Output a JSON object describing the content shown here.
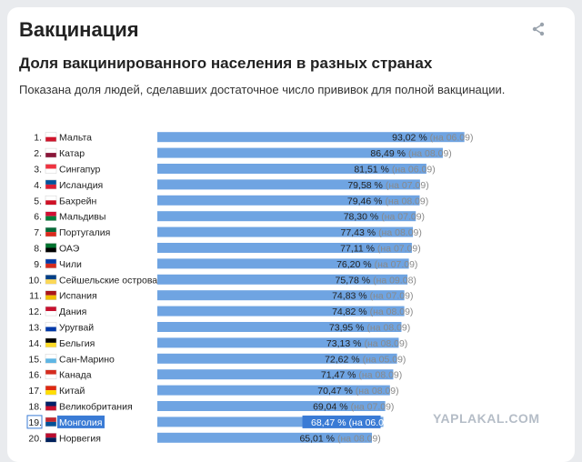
{
  "header": {
    "title": "Вакцинация"
  },
  "chart_data": {
    "type": "bar",
    "title": "Доля вакцинированного населения в разных странах",
    "subtitle": "Показана доля людей, сделавших достаточное число прививок для полной вакцинации.",
    "orientation": "horizontal",
    "xlim": [
      0,
      100
    ],
    "unit": "%",
    "bar_color": "#6fa4e2",
    "highlight_index": 18,
    "rows": [
      {
        "rank": "1.",
        "country": "Мальта",
        "value": 93.02,
        "value_label": "93,02 %",
        "date": "(на 06.09)",
        "flag": "malta-flag-icon",
        "flag_colors": [
          "#ffffff",
          "#cf142b"
        ]
      },
      {
        "rank": "2.",
        "country": "Катар",
        "value": 86.49,
        "value_label": "86,49 %",
        "date": "(на 08.09)",
        "flag": "qatar-flag-icon",
        "flag_colors": [
          "#ffffff",
          "#8a1538"
        ]
      },
      {
        "rank": "3.",
        "country": "Сингапур",
        "value": 81.51,
        "value_label": "81,51 %",
        "date": "(на 06.09)",
        "flag": "singapore-flag-icon",
        "flag_colors": [
          "#ef3340",
          "#ffffff"
        ]
      },
      {
        "rank": "4.",
        "country": "Исландия",
        "value": 79.58,
        "value_label": "79,58 %",
        "date": "(на 07.09)",
        "flag": "iceland-flag-icon",
        "flag_colors": [
          "#02529c",
          "#dc1e35"
        ]
      },
      {
        "rank": "5.",
        "country": "Бахрейн",
        "value": 79.46,
        "value_label": "79,46 %",
        "date": "(на 08.09)",
        "flag": "bahrain-flag-icon",
        "flag_colors": [
          "#ffffff",
          "#ce1126"
        ]
      },
      {
        "rank": "6.",
        "country": "Мальдивы",
        "value": 78.3,
        "value_label": "78,30 %",
        "date": "(на 07.09)",
        "flag": "maldives-flag-icon",
        "flag_colors": [
          "#d21034",
          "#007e3a"
        ]
      },
      {
        "rank": "7.",
        "country": "Португалия",
        "value": 77.43,
        "value_label": "77,43 %",
        "date": "(на 08.09)",
        "flag": "portugal-flag-icon",
        "flag_colors": [
          "#046a38",
          "#da291c"
        ]
      },
      {
        "rank": "8.",
        "country": "ОАЭ",
        "value": 77.11,
        "value_label": "77,11 %",
        "date": "(на 07.09)",
        "flag": "uae-flag-icon",
        "flag_colors": [
          "#00732f",
          "#000000"
        ]
      },
      {
        "rank": "9.",
        "country": "Чили",
        "value": 76.2,
        "value_label": "76,20 %",
        "date": "(на 07.09)",
        "flag": "chile-flag-icon",
        "flag_colors": [
          "#0039a6",
          "#d52b1e"
        ]
      },
      {
        "rank": "10.",
        "country": "Сейшельские острова",
        "value": 75.78,
        "value_label": "75,78 %",
        "date": "(на 09.08)",
        "flag": "seychelles-flag-icon",
        "flag_colors": [
          "#003f87",
          "#fcd856"
        ]
      },
      {
        "rank": "11.",
        "country": "Испания",
        "value": 74.83,
        "value_label": "74,83 %",
        "date": "(на 07.09)",
        "flag": "spain-flag-icon",
        "flag_colors": [
          "#aa151b",
          "#f1bf00"
        ]
      },
      {
        "rank": "12.",
        "country": "Дания",
        "value": 74.82,
        "value_label": "74,82 %",
        "date": "(на 08.09)",
        "flag": "denmark-flag-icon",
        "flag_colors": [
          "#c8102e",
          "#ffffff"
        ]
      },
      {
        "rank": "13.",
        "country": "Уругвай",
        "value": 73.95,
        "value_label": "73,95 %",
        "date": "(на 08.09)",
        "flag": "uruguay-flag-icon",
        "flag_colors": [
          "#ffffff",
          "#0038a8"
        ]
      },
      {
        "rank": "14.",
        "country": "Бельгия",
        "value": 73.13,
        "value_label": "73,13 %",
        "date": "(на 08.09)",
        "flag": "belgium-flag-icon",
        "flag_colors": [
          "#000000",
          "#fdda24"
        ]
      },
      {
        "rank": "15.",
        "country": "Сан-Марино",
        "value": 72.62,
        "value_label": "72,62 %",
        "date": "(на 05.09)",
        "flag": "san-marino-flag-icon",
        "flag_colors": [
          "#ffffff",
          "#5eb6e4"
        ]
      },
      {
        "rank": "16.",
        "country": "Канада",
        "value": 71.47,
        "value_label": "71,47 %",
        "date": "(на 08.09)",
        "flag": "canada-flag-icon",
        "flag_colors": [
          "#d52b1e",
          "#ffffff"
        ]
      },
      {
        "rank": "17.",
        "country": "Китай",
        "value": 70.47,
        "value_label": "70,47 %",
        "date": "(на 08.09)",
        "flag": "china-flag-icon",
        "flag_colors": [
          "#de2910",
          "#ffde00"
        ]
      },
      {
        "rank": "18.",
        "country": "Великобритания",
        "value": 69.04,
        "value_label": "69,04 %",
        "date": "(на 07.09)",
        "flag": "uk-flag-icon",
        "flag_colors": [
          "#012169",
          "#c8102e"
        ]
      },
      {
        "rank": "19.",
        "country": "Монголия",
        "value": 68.47,
        "value_label": "68,47 %",
        "date": "(на 06.0",
        "flag": "mongolia-flag-icon",
        "flag_colors": [
          "#c4272f",
          "#015197"
        ]
      },
      {
        "rank": "20.",
        "country": "Норвегия",
        "value": 65.01,
        "value_label": "65,01 %",
        "date": "(на 08.09)",
        "flag": "norway-flag-icon",
        "flag_colors": [
          "#ba0c2f",
          "#00205b"
        ]
      }
    ]
  },
  "watermark": "YAPLAKAL.COM",
  "icons": {
    "share": "share-icon"
  }
}
